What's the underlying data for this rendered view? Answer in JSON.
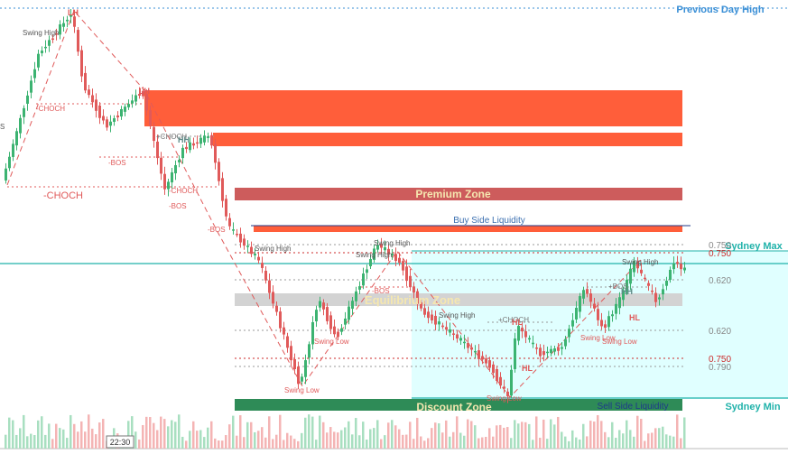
{
  "chart": {
    "timestamp_label": "22:30",
    "previous_day_high": "Previous Day High",
    "zones": {
      "premium": "Premium Zone",
      "equilibrium": "Equilibrium Zone",
      "discount": "Discount Zone"
    },
    "liquidity": {
      "buy_side": "Buy Side Liquidity",
      "sell_side": "Sell Side Liquidity"
    },
    "sydney": {
      "max": "Sydney Max",
      "min": "Sydney Min"
    },
    "fib_levels": [
      {
        "label": "0.750"
      },
      {
        "label": "0.750"
      },
      {
        "label": "0.620"
      },
      {
        "label": "0.620"
      },
      {
        "label": "0.750"
      },
      {
        "label": "0.790"
      }
    ],
    "structure_labels": [
      {
        "text": "Swing High",
        "color": "#555555"
      },
      {
        "text": "-CHOCH",
        "color": "#e05a5a"
      },
      {
        "text": "-CHOCH",
        "color": "#e05a5a"
      },
      {
        "text": "-BOS",
        "color": "#e05a5a"
      },
      {
        "text": "+CHOCH",
        "color": "#777777"
      },
      {
        "text": "HH",
        "color": "#5e8a86"
      },
      {
        "text": "-CHOCH",
        "color": "#e05a5a"
      },
      {
        "text": "-BOS",
        "color": "#e05a5a"
      },
      {
        "text": "-BOS",
        "color": "#e05a5a"
      },
      {
        "text": "Swing High",
        "color": "#555555"
      },
      {
        "text": "Swing High",
        "color": "#555555"
      },
      {
        "text": "Swing High",
        "color": "#555555"
      },
      {
        "text": "-BOS",
        "color": "#e05a5a"
      },
      {
        "text": "Swing Low",
        "color": "#e05a5a"
      },
      {
        "text": "Swing Low",
        "color": "#e05a5a"
      },
      {
        "text": "Swing High",
        "color": "#555555"
      },
      {
        "text": "+CHOCH",
        "color": "#777777"
      },
      {
        "text": "HL",
        "color": "#e05a5a"
      },
      {
        "text": "Swing Low",
        "color": "#e05a5a"
      },
      {
        "text": "+BOS",
        "color": "#777777"
      },
      {
        "text": "HH",
        "color": "#5e8a86"
      },
      {
        "text": "Swing High",
        "color": "#555555"
      },
      {
        "text": "Swing Low",
        "color": "#e05a5a"
      },
      {
        "text": "Swing Low",
        "color": "#e05a5a"
      },
      {
        "text": "HL",
        "color": "#e05a5a"
      },
      {
        "text": "HL",
        "color": "#e05a5a"
      },
      {
        "text": "LH",
        "color": "#e05a5a"
      },
      {
        "text": "LH",
        "color": "#e05a5a"
      },
      {
        "text": "S",
        "color": "#555555"
      }
    ],
    "colors": {
      "bull": "#3cb371",
      "bear": "#e05a5a",
      "premium_block": "#ff5e3a",
      "premium_zone": "#cd5c5c",
      "equilibrium_zone": "#d3d3d3",
      "discount_zone": "#2e8b57",
      "discount_area": "#e0ffff",
      "sydney": "#20b2aa",
      "label_blue": "#3a8fd6"
    }
  }
}
